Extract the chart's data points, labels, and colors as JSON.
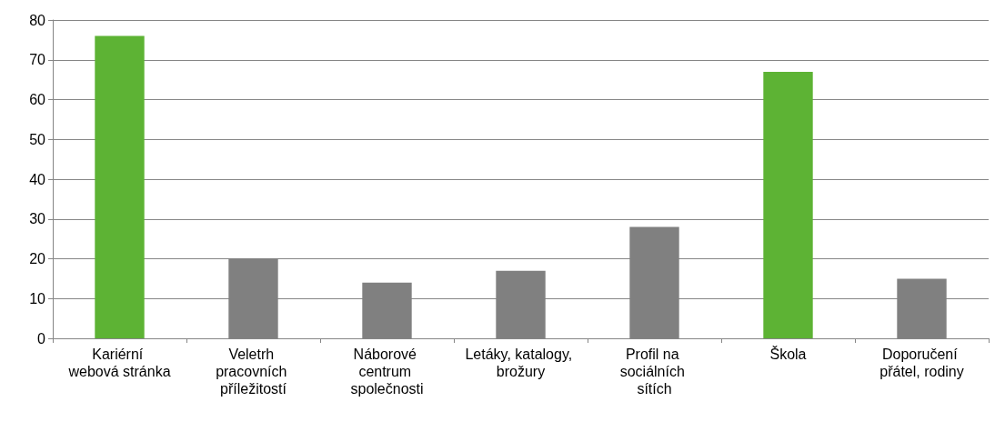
{
  "chart_data": {
    "type": "bar",
    "categories": [
      "Kariérní webová stránka",
      "Veletrh pracovních příležitostí",
      "Náborové centrum společnosti",
      "Letáky, katalogy, brožury",
      "Profil na sociálních sítích",
      "Škola",
      "Doporučení přátel, rodiny"
    ],
    "values": [
      76,
      20,
      14,
      17,
      28,
      67,
      15
    ],
    "colors": [
      "#5db334",
      "#808080",
      "#808080",
      "#808080",
      "#808080",
      "#5db334",
      "#808080"
    ],
    "ylim": [
      0,
      80
    ],
    "yticks": [
      0,
      10,
      20,
      30,
      40,
      50,
      60,
      70,
      80
    ],
    "grid": "y"
  }
}
